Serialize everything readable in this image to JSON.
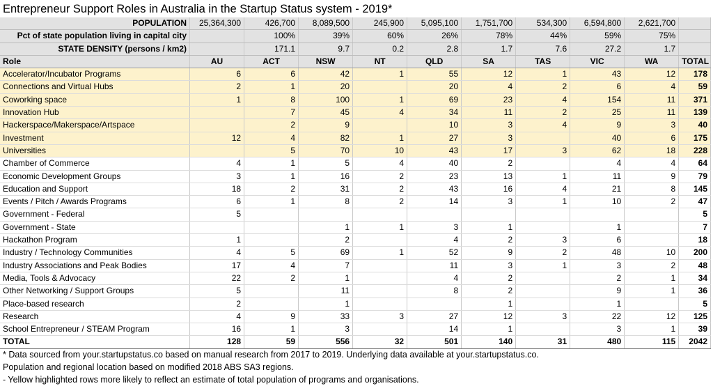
{
  "title": "Entrepreneur Support Roles in Australia in the Startup Status system - 2019*",
  "stats": [
    {
      "label": "POPULATION",
      "values": [
        "25,364,300",
        "426,700",
        "8,089,500",
        "245,900",
        "5,095,100",
        "1,751,700",
        "534,300",
        "6,594,800",
        "2,621,700"
      ]
    },
    {
      "label": "Pct of state population living in capital city",
      "values": [
        "",
        "100%",
        "39%",
        "60%",
        "26%",
        "78%",
        "44%",
        "59%",
        "75%"
      ]
    },
    {
      "label": "STATE DENSITY (persons / km2)",
      "values": [
        "",
        "171.1",
        "9.7",
        "0.2",
        "2.8",
        "1.7",
        "7.6",
        "27.2",
        "1.7"
      ]
    }
  ],
  "columns": [
    "Role",
    "AU",
    "ACT",
    "NSW",
    "NT",
    "QLD",
    "SA",
    "TAS",
    "VIC",
    "WA",
    "TOTAL"
  ],
  "rows": [
    {
      "name": "Accelerator/Incubator Programs",
      "highlight": true,
      "values": [
        "6",
        "6",
        "42",
        "1",
        "55",
        "12",
        "1",
        "43",
        "12"
      ],
      "total": "178"
    },
    {
      "name": "Connections and Virtual Hubs",
      "highlight": true,
      "values": [
        "2",
        "1",
        "20",
        "",
        "20",
        "4",
        "2",
        "6",
        "4"
      ],
      "total": "59"
    },
    {
      "name": "Coworking space",
      "highlight": true,
      "values": [
        "1",
        "8",
        "100",
        "1",
        "69",
        "23",
        "4",
        "154",
        "11"
      ],
      "total": "371"
    },
    {
      "name": "Innovation Hub",
      "highlight": true,
      "values": [
        "",
        "7",
        "45",
        "4",
        "34",
        "11",
        "2",
        "25",
        "11"
      ],
      "total": "139"
    },
    {
      "name": "Hackerspace/Makerspace/Artspace",
      "highlight": true,
      "values": [
        "",
        "2",
        "9",
        "",
        "10",
        "3",
        "4",
        "9",
        "3"
      ],
      "total": "40"
    },
    {
      "name": "Investment",
      "highlight": true,
      "values": [
        "12",
        "4",
        "82",
        "1",
        "27",
        "3",
        "",
        "40",
        "6"
      ],
      "total": "175"
    },
    {
      "name": "Universities",
      "highlight": true,
      "values": [
        "",
        "5",
        "70",
        "10",
        "43",
        "17",
        "3",
        "62",
        "18"
      ],
      "total": "228"
    },
    {
      "name": "Chamber of Commerce",
      "highlight": false,
      "values": [
        "4",
        "1",
        "5",
        "4",
        "40",
        "2",
        "",
        "4",
        "4"
      ],
      "total": "64"
    },
    {
      "name": "Economic Development Groups",
      "highlight": false,
      "values": [
        "3",
        "1",
        "16",
        "2",
        "23",
        "13",
        "1",
        "11",
        "9"
      ],
      "total": "79"
    },
    {
      "name": "Education and Support",
      "highlight": false,
      "values": [
        "18",
        "2",
        "31",
        "2",
        "43",
        "16",
        "4",
        "21",
        "8"
      ],
      "total": "145"
    },
    {
      "name": "Events / Pitch / Awards Programs",
      "highlight": false,
      "values": [
        "6",
        "1",
        "8",
        "2",
        "14",
        "3",
        "1",
        "10",
        "2"
      ],
      "total": "47"
    },
    {
      "name": "Government - Federal",
      "highlight": false,
      "values": [
        "5",
        "",
        "",
        "",
        "",
        "",
        "",
        "",
        ""
      ],
      "total": "5"
    },
    {
      "name": "Government - State",
      "highlight": false,
      "values": [
        "",
        "",
        "1",
        "1",
        "3",
        "1",
        "",
        "1",
        ""
      ],
      "total": "7"
    },
    {
      "name": "Hackathon Program",
      "highlight": false,
      "values": [
        "1",
        "",
        "2",
        "",
        "4",
        "2",
        "3",
        "6",
        ""
      ],
      "total": "18"
    },
    {
      "name": "Industry / Technology Communities",
      "highlight": false,
      "values": [
        "4",
        "5",
        "69",
        "1",
        "52",
        "9",
        "2",
        "48",
        "10"
      ],
      "total": "200"
    },
    {
      "name": "Industry Associations and Peak Bodies",
      "highlight": false,
      "values": [
        "17",
        "4",
        "7",
        "",
        "11",
        "3",
        "1",
        "3",
        "2"
      ],
      "total": "48"
    },
    {
      "name": "Media, Tools & Advocacy",
      "highlight": false,
      "values": [
        "22",
        "2",
        "1",
        "",
        "4",
        "2",
        "",
        "2",
        "1"
      ],
      "total": "34"
    },
    {
      "name": "Other Networking / Support Groups",
      "highlight": false,
      "values": [
        "5",
        "",
        "11",
        "",
        "8",
        "2",
        "",
        "9",
        "1"
      ],
      "total": "36"
    },
    {
      "name": "Place-based research",
      "highlight": false,
      "values": [
        "2",
        "",
        "1",
        "",
        "",
        "1",
        "",
        "1",
        ""
      ],
      "total": "5"
    },
    {
      "name": "Research",
      "highlight": false,
      "values": [
        "4",
        "9",
        "33",
        "3",
        "27",
        "12",
        "3",
        "22",
        "12"
      ],
      "total": "125"
    },
    {
      "name": "School Entrepreneur / STEAM Program",
      "highlight": false,
      "values": [
        "16",
        "1",
        "3",
        "",
        "14",
        "1",
        "",
        "3",
        "1"
      ],
      "total": "39"
    }
  ],
  "totals": {
    "label": "TOTAL",
    "values": [
      "128",
      "59",
      "556",
      "32",
      "501",
      "140",
      "31",
      "480",
      "115"
    ],
    "grand": "2042"
  },
  "notes": [
    "* Data sourced from your.startupstatus.co based on manual research from 2017 to 2019. Underlying data available at your.startupstatus.co.",
    "Population and regional location based on modified 2018 ABS SA3 regions.",
    "- Yellow highlighted rows more likely to reflect an estimate of total population of programs and organisations."
  ]
}
